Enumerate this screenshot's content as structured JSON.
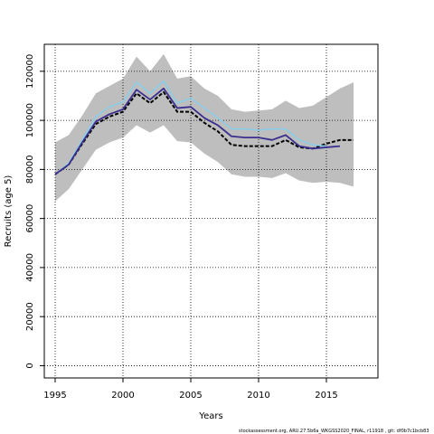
{
  "chart_data": {
    "type": "line",
    "title": "",
    "xlabel": "Years",
    "ylabel": "Recruits (age 5)",
    "xlim": [
      1994.2,
      2018.8
    ],
    "ylim": [
      -5000,
      131000
    ],
    "x_ticks": [
      1995,
      2000,
      2005,
      2010,
      2015
    ],
    "y_ticks": [
      0,
      20000,
      40000,
      60000,
      80000,
      100000,
      120000
    ],
    "grid": true,
    "grid_style": "dotted",
    "band_color": "#bebebe",
    "band": {
      "x": [
        1995,
        1996,
        1997,
        1998,
        1999,
        2000,
        2001,
        2002,
        2003,
        2004,
        2005,
        2006,
        2007,
        2008,
        2009,
        2010,
        2011,
        2012,
        2013,
        2014,
        2015,
        2016,
        2017
      ],
      "upper": [
        91000,
        94000,
        102000,
        111000,
        114000,
        117000,
        126000,
        120000,
        127000,
        117000,
        118000,
        113000,
        110000,
        104500,
        103500,
        104000,
        104500,
        108000,
        105000,
        106000,
        109500,
        113000,
        115500
      ],
      "lower": [
        67000,
        72000,
        80000,
        88000,
        91000,
        93000,
        98000,
        95000,
        98000,
        91500,
        91000,
        86500,
        83000,
        78000,
        77000,
        77000,
        76500,
        78500,
        75500,
        74500,
        75000,
        74500,
        73000
      ]
    },
    "series": [
      {
        "style": "dashed",
        "color": "#000000",
        "width": 2,
        "x": [
          1995,
          1996,
          1997,
          1998,
          1999,
          2000,
          2001,
          2002,
          2003,
          2004,
          2005,
          2006,
          2007,
          2008,
          2009,
          2010,
          2011,
          2012,
          2013,
          2014,
          2015,
          2016,
          2017
        ],
        "values": [
          78000,
          82000,
          90500,
          98500,
          101500,
          103500,
          111000,
          107000,
          111500,
          103500,
          103500,
          99000,
          95500,
          90000,
          89500,
          89500,
          89500,
          92000,
          89000,
          88500,
          90500,
          92000,
          92000
        ]
      },
      {
        "style": "solid",
        "color": "#87ceeb",
        "width": 1.5,
        "x": [
          1995,
          1996,
          1997,
          1998,
          1999,
          2000,
          2001,
          2002,
          2003,
          2004,
          2005,
          2006,
          2007,
          2008,
          2009,
          2010,
          2011,
          2012,
          2013,
          2014,
          2015
        ],
        "values": [
          78000,
          82500,
          92000,
          101500,
          105500,
          107500,
          115500,
          111000,
          116000,
          107000,
          109000,
          105000,
          101000,
          96500,
          96500,
          96000,
          96500,
          96500,
          92000,
          90000,
          89500
        ]
      },
      {
        "style": "solid",
        "color": "#3a2f8f",
        "width": 1.8,
        "x": [
          1995,
          1996,
          1997,
          1998,
          1999,
          2000,
          2001,
          2002,
          2003,
          2004,
          2005,
          2006,
          2007,
          2008,
          2009,
          2010,
          2011,
          2012,
          2013,
          2014,
          2015,
          2016
        ],
        "values": [
          78000,
          82000,
          91000,
          99500,
          102500,
          104500,
          112500,
          108500,
          113000,
          105000,
          105500,
          101000,
          98000,
          93500,
          93000,
          93000,
          92000,
          94000,
          89500,
          88500,
          89000,
          89500
        ]
      }
    ]
  },
  "footer": "stockassessment.org,  ARU.27.5b6a_WKGSS2020_FINAL,  r11918 , git:  df0b7c1bcb83"
}
